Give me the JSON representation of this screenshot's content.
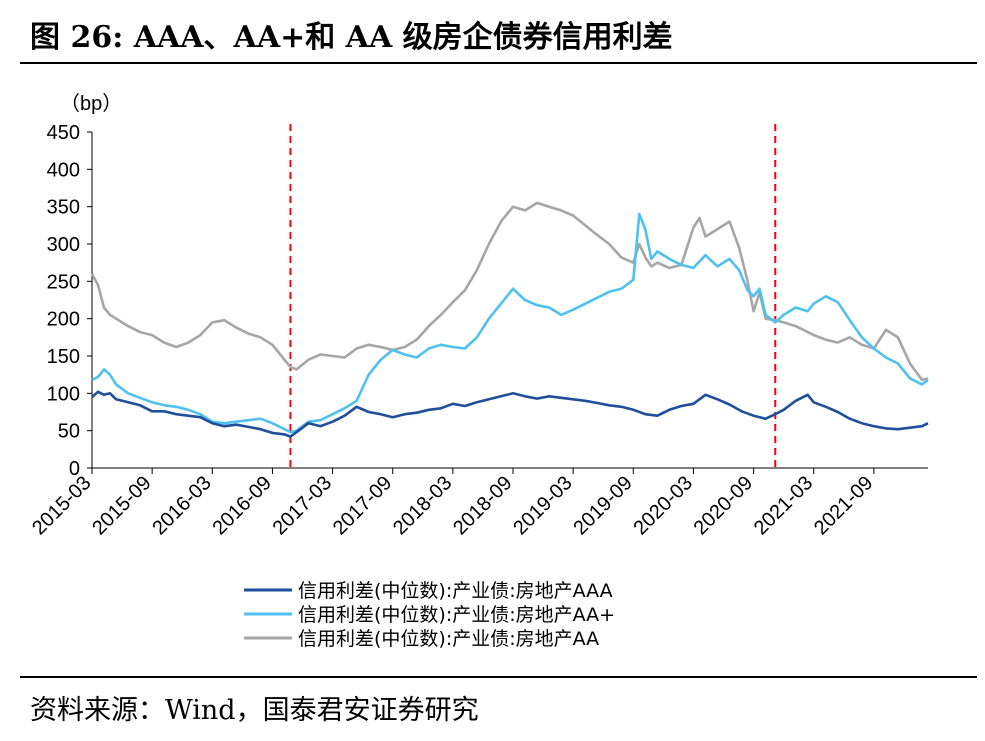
{
  "header": {
    "title": "图 26:   AAA、AA+和 AA 级房企债券信用利差"
  },
  "footer": {
    "source": "资料来源：Wind，国泰君安证券研究"
  },
  "chart_data": {
    "type": "line",
    "ylabel": "（bp）",
    "ylim": [
      0,
      450
    ],
    "yticks": [
      0,
      50,
      100,
      150,
      200,
      250,
      300,
      350,
      400,
      450
    ],
    "xlim": [
      2015.0,
      2021.95
    ],
    "xticks": [
      {
        "t": 2015.0,
        "label": "2015-03"
      },
      {
        "t": 2015.5,
        "label": "2015-09"
      },
      {
        "t": 2016.0,
        "label": "2016-03"
      },
      {
        "t": 2016.5,
        "label": "2016-09"
      },
      {
        "t": 2017.0,
        "label": "2017-03"
      },
      {
        "t": 2017.5,
        "label": "2017-09"
      },
      {
        "t": 2018.0,
        "label": "2018-03"
      },
      {
        "t": 2018.5,
        "label": "2018-09"
      },
      {
        "t": 2019.0,
        "label": "2019-03"
      },
      {
        "t": 2019.5,
        "label": "2019-09"
      },
      {
        "t": 2020.0,
        "label": "2020-03"
      },
      {
        "t": 2020.5,
        "label": "2020-09"
      },
      {
        "t": 2021.0,
        "label": "2021-03"
      },
      {
        "t": 2021.5,
        "label": "2021-09"
      }
    ],
    "vlines": [
      2016.65,
      2020.68
    ],
    "series": [
      {
        "name": "信用利差(中位数):产业债:房地产AAA",
        "color": "#1f4e9a",
        "points": [
          [
            2015.0,
            95
          ],
          [
            2015.05,
            102
          ],
          [
            2015.1,
            98
          ],
          [
            2015.15,
            100
          ],
          [
            2015.2,
            92
          ],
          [
            2015.3,
            88
          ],
          [
            2015.4,
            84
          ],
          [
            2015.5,
            76
          ],
          [
            2015.6,
            76
          ],
          [
            2015.7,
            72
          ],
          [
            2015.8,
            70
          ],
          [
            2015.9,
            68
          ],
          [
            2016.0,
            60
          ],
          [
            2016.1,
            56
          ],
          [
            2016.2,
            58
          ],
          [
            2016.3,
            55
          ],
          [
            2016.4,
            52
          ],
          [
            2016.5,
            47
          ],
          [
            2016.6,
            45
          ],
          [
            2016.65,
            42
          ],
          [
            2016.7,
            48
          ],
          [
            2016.8,
            60
          ],
          [
            2016.9,
            56
          ],
          [
            2017.0,
            62
          ],
          [
            2017.1,
            70
          ],
          [
            2017.2,
            82
          ],
          [
            2017.3,
            75
          ],
          [
            2017.4,
            72
          ],
          [
            2017.5,
            68
          ],
          [
            2017.6,
            72
          ],
          [
            2017.7,
            74
          ],
          [
            2017.8,
            78
          ],
          [
            2017.9,
            80
          ],
          [
            2018.0,
            86
          ],
          [
            2018.1,
            83
          ],
          [
            2018.2,
            88
          ],
          [
            2018.3,
            92
          ],
          [
            2018.4,
            96
          ],
          [
            2018.5,
            100
          ],
          [
            2018.6,
            96
          ],
          [
            2018.7,
            93
          ],
          [
            2018.8,
            96
          ],
          [
            2018.9,
            94
          ],
          [
            2019.0,
            92
          ],
          [
            2019.1,
            90
          ],
          [
            2019.2,
            87
          ],
          [
            2019.3,
            84
          ],
          [
            2019.4,
            82
          ],
          [
            2019.5,
            78
          ],
          [
            2019.6,
            72
          ],
          [
            2019.7,
            70
          ],
          [
            2019.8,
            78
          ],
          [
            2019.9,
            83
          ],
          [
            2020.0,
            86
          ],
          [
            2020.1,
            98
          ],
          [
            2020.2,
            92
          ],
          [
            2020.3,
            85
          ],
          [
            2020.4,
            76
          ],
          [
            2020.5,
            70
          ],
          [
            2020.6,
            66
          ],
          [
            2020.68,
            72
          ],
          [
            2020.75,
            78
          ],
          [
            2020.85,
            90
          ],
          [
            2020.95,
            98
          ],
          [
            2021.0,
            88
          ],
          [
            2021.1,
            82
          ],
          [
            2021.2,
            75
          ],
          [
            2021.3,
            66
          ],
          [
            2021.4,
            60
          ],
          [
            2021.5,
            56
          ],
          [
            2021.6,
            53
          ],
          [
            2021.7,
            52
          ],
          [
            2021.8,
            54
          ],
          [
            2021.9,
            56
          ],
          [
            2021.95,
            60
          ]
        ]
      },
      {
        "name": "信用利差(中位数):产业债:房地产AA+",
        "color": "#4fc1ee",
        "points": [
          [
            2015.0,
            118
          ],
          [
            2015.05,
            122
          ],
          [
            2015.1,
            132
          ],
          [
            2015.15,
            125
          ],
          [
            2015.2,
            112
          ],
          [
            2015.3,
            100
          ],
          [
            2015.4,
            94
          ],
          [
            2015.5,
            88
          ],
          [
            2015.6,
            84
          ],
          [
            2015.7,
            82
          ],
          [
            2015.8,
            78
          ],
          [
            2015.9,
            72
          ],
          [
            2016.0,
            62
          ],
          [
            2016.1,
            60
          ],
          [
            2016.2,
            62
          ],
          [
            2016.3,
            64
          ],
          [
            2016.4,
            66
          ],
          [
            2016.5,
            60
          ],
          [
            2016.6,
            52
          ],
          [
            2016.65,
            48
          ],
          [
            2016.7,
            50
          ],
          [
            2016.8,
            62
          ],
          [
            2016.9,
            64
          ],
          [
            2017.0,
            72
          ],
          [
            2017.1,
            80
          ],
          [
            2017.2,
            90
          ],
          [
            2017.3,
            125
          ],
          [
            2017.4,
            145
          ],
          [
            2017.5,
            158
          ],
          [
            2017.6,
            152
          ],
          [
            2017.7,
            148
          ],
          [
            2017.8,
            160
          ],
          [
            2017.9,
            165
          ],
          [
            2018.0,
            162
          ],
          [
            2018.1,
            160
          ],
          [
            2018.2,
            175
          ],
          [
            2018.3,
            200
          ],
          [
            2018.4,
            220
          ],
          [
            2018.5,
            240
          ],
          [
            2018.6,
            225
          ],
          [
            2018.7,
            218
          ],
          [
            2018.8,
            215
          ],
          [
            2018.9,
            205
          ],
          [
            2019.0,
            212
          ],
          [
            2019.1,
            220
          ],
          [
            2019.2,
            228
          ],
          [
            2019.3,
            236
          ],
          [
            2019.4,
            240
          ],
          [
            2019.5,
            252
          ],
          [
            2019.55,
            340
          ],
          [
            2019.6,
            320
          ],
          [
            2019.65,
            280
          ],
          [
            2019.7,
            290
          ],
          [
            2019.8,
            280
          ],
          [
            2019.9,
            272
          ],
          [
            2020.0,
            268
          ],
          [
            2020.1,
            285
          ],
          [
            2020.2,
            270
          ],
          [
            2020.3,
            280
          ],
          [
            2020.38,
            265
          ],
          [
            2020.45,
            238
          ],
          [
            2020.5,
            230
          ],
          [
            2020.55,
            240
          ],
          [
            2020.6,
            205
          ],
          [
            2020.68,
            195
          ],
          [
            2020.75,
            205
          ],
          [
            2020.85,
            215
          ],
          [
            2020.95,
            210
          ],
          [
            2021.0,
            220
          ],
          [
            2021.1,
            230
          ],
          [
            2021.2,
            222
          ],
          [
            2021.3,
            198
          ],
          [
            2021.4,
            175
          ],
          [
            2021.5,
            160
          ],
          [
            2021.6,
            148
          ],
          [
            2021.7,
            140
          ],
          [
            2021.8,
            120
          ],
          [
            2021.9,
            112
          ],
          [
            2021.95,
            118
          ]
        ]
      },
      {
        "name": "信用利差(中位数):产业债:房地产AA",
        "color": "#a6a6a6",
        "points": [
          [
            2015.0,
            260
          ],
          [
            2015.05,
            245
          ],
          [
            2015.1,
            215
          ],
          [
            2015.15,
            205
          ],
          [
            2015.2,
            200
          ],
          [
            2015.3,
            190
          ],
          [
            2015.4,
            182
          ],
          [
            2015.5,
            178
          ],
          [
            2015.6,
            168
          ],
          [
            2015.7,
            162
          ],
          [
            2015.8,
            168
          ],
          [
            2015.9,
            178
          ],
          [
            2016.0,
            195
          ],
          [
            2016.1,
            198
          ],
          [
            2016.2,
            188
          ],
          [
            2016.3,
            180
          ],
          [
            2016.4,
            175
          ],
          [
            2016.5,
            165
          ],
          [
            2016.6,
            145
          ],
          [
            2016.65,
            135
          ],
          [
            2016.7,
            132
          ],
          [
            2016.8,
            145
          ],
          [
            2016.9,
            152
          ],
          [
            2017.0,
            150
          ],
          [
            2017.1,
            148
          ],
          [
            2017.2,
            160
          ],
          [
            2017.3,
            165
          ],
          [
            2017.4,
            162
          ],
          [
            2017.5,
            158
          ],
          [
            2017.6,
            162
          ],
          [
            2017.7,
            172
          ],
          [
            2017.8,
            190
          ],
          [
            2017.9,
            205
          ],
          [
            2018.0,
            222
          ],
          [
            2018.1,
            238
          ],
          [
            2018.2,
            265
          ],
          [
            2018.3,
            300
          ],
          [
            2018.4,
            330
          ],
          [
            2018.5,
            350
          ],
          [
            2018.6,
            345
          ],
          [
            2018.7,
            355
          ],
          [
            2018.8,
            350
          ],
          [
            2018.9,
            345
          ],
          [
            2019.0,
            338
          ],
          [
            2019.1,
            325
          ],
          [
            2019.2,
            312
          ],
          [
            2019.3,
            300
          ],
          [
            2019.4,
            282
          ],
          [
            2019.5,
            275
          ],
          [
            2019.55,
            300
          ],
          [
            2019.6,
            282
          ],
          [
            2019.65,
            270
          ],
          [
            2019.7,
            275
          ],
          [
            2019.8,
            268
          ],
          [
            2019.9,
            272
          ],
          [
            2020.0,
            322
          ],
          [
            2020.05,
            335
          ],
          [
            2020.1,
            310
          ],
          [
            2020.2,
            320
          ],
          [
            2020.3,
            330
          ],
          [
            2020.38,
            295
          ],
          [
            2020.45,
            250
          ],
          [
            2020.5,
            210
          ],
          [
            2020.55,
            235
          ],
          [
            2020.6,
            200
          ],
          [
            2020.68,
            198
          ],
          [
            2020.75,
            195
          ],
          [
            2020.85,
            190
          ],
          [
            2020.95,
            182
          ],
          [
            2021.0,
            178
          ],
          [
            2021.1,
            172
          ],
          [
            2021.2,
            168
          ],
          [
            2021.3,
            175
          ],
          [
            2021.4,
            165
          ],
          [
            2021.5,
            160
          ],
          [
            2021.6,
            185
          ],
          [
            2021.7,
            175
          ],
          [
            2021.8,
            140
          ],
          [
            2021.9,
            118
          ],
          [
            2021.95,
            120
          ]
        ]
      }
    ]
  }
}
